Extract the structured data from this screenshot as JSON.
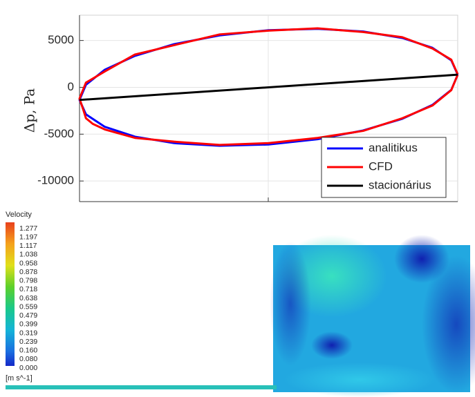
{
  "chart_data": {
    "type": "line",
    "ylabel": "Δp, Pa",
    "ylim": [
      -12200,
      7700
    ],
    "yticks": [
      5000,
      0,
      -5000,
      -10000
    ],
    "xlim": [
      -1,
      1
    ],
    "grid": true,
    "legend": "lower right",
    "series": [
      {
        "name": "analitikus",
        "color": "#0000ff",
        "x": [
          1,
          0.966,
          0.866,
          0.707,
          0.5,
          0.259,
          0,
          -0.259,
          -0.5,
          -0.707,
          -0.866,
          -0.966,
          -1,
          -0.966,
          -0.866,
          -0.707,
          -0.5,
          -0.259,
          0,
          0.259,
          0.5,
          0.707,
          0.866,
          0.966,
          1
        ],
        "values": [
          1350,
          2884,
          4219,
          5267,
          5958,
          6243,
          6100,
          5543,
          4608,
          3359,
          1881,
          276,
          -1350,
          -2884,
          -4219,
          -5267,
          -5958,
          -6243,
          -6100,
          -5543,
          -4608,
          -3359,
          -1881,
          -276,
          1350
        ]
      },
      {
        "name": "CFD",
        "color": "#ff0000",
        "x": [
          1,
          0.966,
          0.866,
          0.707,
          0.5,
          0.259,
          0,
          -0.259,
          -0.5,
          -0.707,
          -0.866,
          -0.966,
          -1,
          -0.98,
          -0.966,
          -0.93,
          -0.866,
          -0.707,
          -0.5,
          -0.259,
          0,
          0.259,
          0.5,
          0.707,
          0.866,
          0.966,
          1
        ],
        "values": [
          1400,
          2950,
          4150,
          5350,
          5900,
          6300,
          6050,
          5650,
          4500,
          3500,
          1700,
          500,
          -1200,
          -2400,
          -3300,
          -3900,
          -4500,
          -5400,
          -5800,
          -6150,
          -5950,
          -5400,
          -4650,
          -3300,
          -1950,
          -300,
          1350
        ]
      },
      {
        "name": "stacionárius",
        "color": "#000000",
        "x": [
          -1,
          1
        ],
        "values": [
          -1350,
          1350
        ]
      }
    ]
  },
  "contour": {
    "title": "Velocity",
    "labels": [
      "1.277",
      "1.197",
      "1.117",
      "1.038",
      "0.958",
      "0.878",
      "0.798",
      "0.718",
      "0.638",
      "0.559",
      "0.479",
      "0.399",
      "0.319",
      "0.239",
      "0.160",
      "0.080",
      "0.000"
    ],
    "unit": "[m s^-1]"
  }
}
